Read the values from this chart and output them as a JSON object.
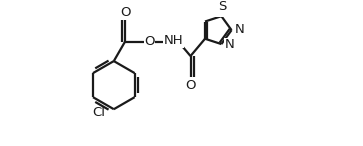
{
  "background_color": "#ffffff",
  "line_color": "#1a1a1a",
  "line_width": 1.6,
  "font_size": 9.5,
  "figsize": [
    3.63,
    1.46
  ],
  "dpi": 100,
  "xlim": [
    -0.6,
    3.0
  ],
  "ylim": [
    -0.85,
    0.85
  ]
}
